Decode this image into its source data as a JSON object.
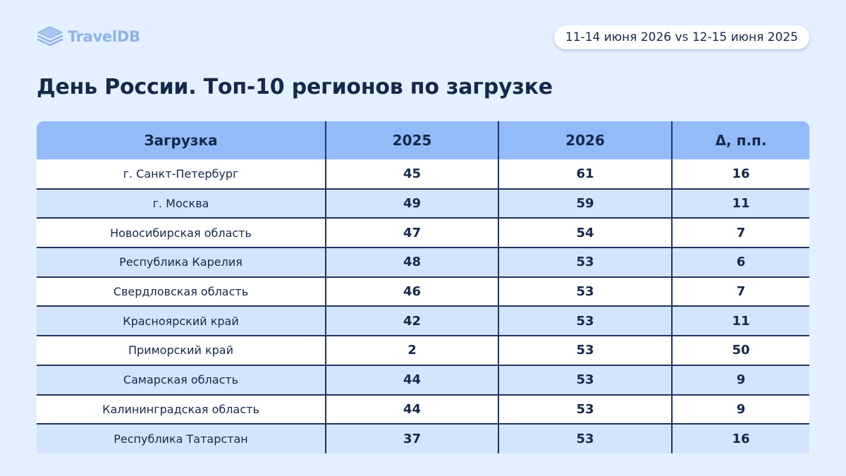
{
  "brand": {
    "name": "TravelDB",
    "logo_icon": "stacked-layers-icon",
    "color": "#8fb3e8"
  },
  "period": "11-14 июня 2026 vs 12-15 июня 2025",
  "title": "День России. Топ-10 регионов по загрузке",
  "colors": {
    "background": "#e4efff",
    "header": "#94bbf9",
    "row_alt": "#d4e4fd",
    "text": "#14284b"
  },
  "table": {
    "headers": [
      "Загрузка",
      "2025",
      "2026",
      "Δ, п.п."
    ],
    "rows": [
      [
        "г. Санкт-Петербург",
        "45",
        "61",
        "16"
      ],
      [
        "г. Москва",
        "49",
        "59",
        "11"
      ],
      [
        "Новосибирская область",
        "47",
        "54",
        "7"
      ],
      [
        "Республика Карелия",
        "48",
        "53",
        "6"
      ],
      [
        "Свердловская область",
        "46",
        "53",
        "7"
      ],
      [
        "Красноярский край",
        "42",
        "53",
        "11"
      ],
      [
        "Приморский край",
        "2",
        "53",
        "50"
      ],
      [
        "Самарская область",
        "44",
        "53",
        "9"
      ],
      [
        "Калининградская область",
        "44",
        "53",
        "9"
      ],
      [
        "Республика Татарстан",
        "37",
        "53",
        "16"
      ]
    ]
  },
  "chart_data": {
    "type": "table",
    "title": "День России. Топ-10 регионов по загрузке",
    "columns": [
      "Загрузка",
      "2025",
      "2026",
      "Δ, п.п."
    ],
    "rows": [
      [
        "г. Санкт-Петербург",
        45,
        61,
        16
      ],
      [
        "г. Москва",
        49,
        59,
        11
      ],
      [
        "Новосибирская область",
        47,
        54,
        7
      ],
      [
        "Республика Карелия",
        48,
        53,
        6
      ],
      [
        "Свердловская область",
        46,
        53,
        7
      ],
      [
        "Красноярский край",
        42,
        53,
        11
      ],
      [
        "Приморский край",
        2,
        53,
        50
      ],
      [
        "Самарская область",
        44,
        53,
        9
      ],
      [
        "Калининградская область",
        44,
        53,
        9
      ],
      [
        "Республика Татарстан",
        37,
        53,
        16
      ]
    ]
  }
}
